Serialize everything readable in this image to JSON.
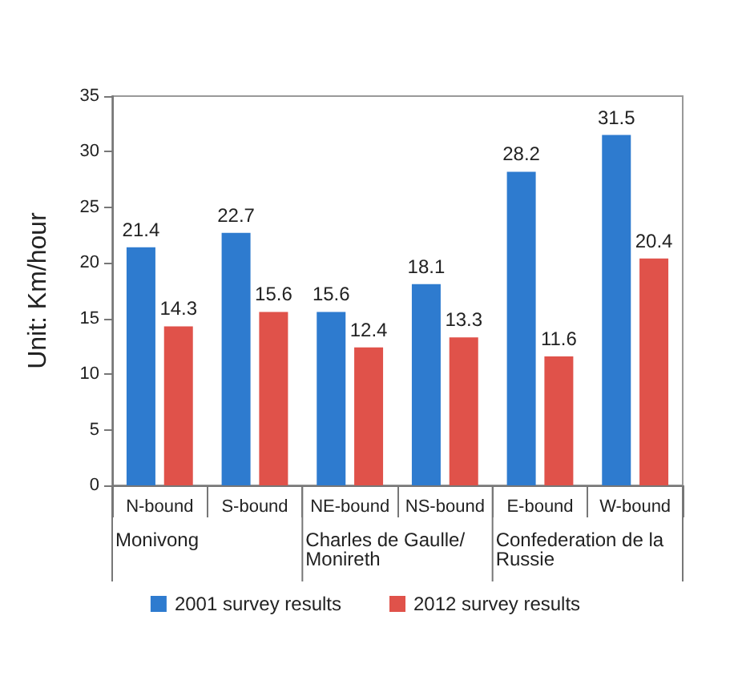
{
  "chart_data": {
    "type": "bar",
    "ylabel": "Unit: Km/hour",
    "categories": [
      "N-bound",
      "S-bound",
      "NE-bound",
      "NS-bound",
      "E-bound",
      "W-bound"
    ],
    "series": [
      {
        "name": "2001 survey results",
        "color": "#2e7bcf",
        "values": [
          21.4,
          22.7,
          15.6,
          18.1,
          28.2,
          31.5
        ]
      },
      {
        "name": "2012 survey results",
        "color": "#e0524a",
        "values": [
          14.3,
          15.6,
          12.4,
          13.3,
          11.6,
          20.4
        ]
      }
    ],
    "ylim": [
      0,
      35
    ],
    "yticks": [
      0,
      5,
      10,
      15,
      20,
      25,
      30,
      35
    ],
    "grid": false,
    "legend": "bottom",
    "data_labels": true,
    "annotations": [
      "Monivong",
      "Charles de Gaulle/ Monireth",
      "Confederation de la Russie"
    ]
  }
}
